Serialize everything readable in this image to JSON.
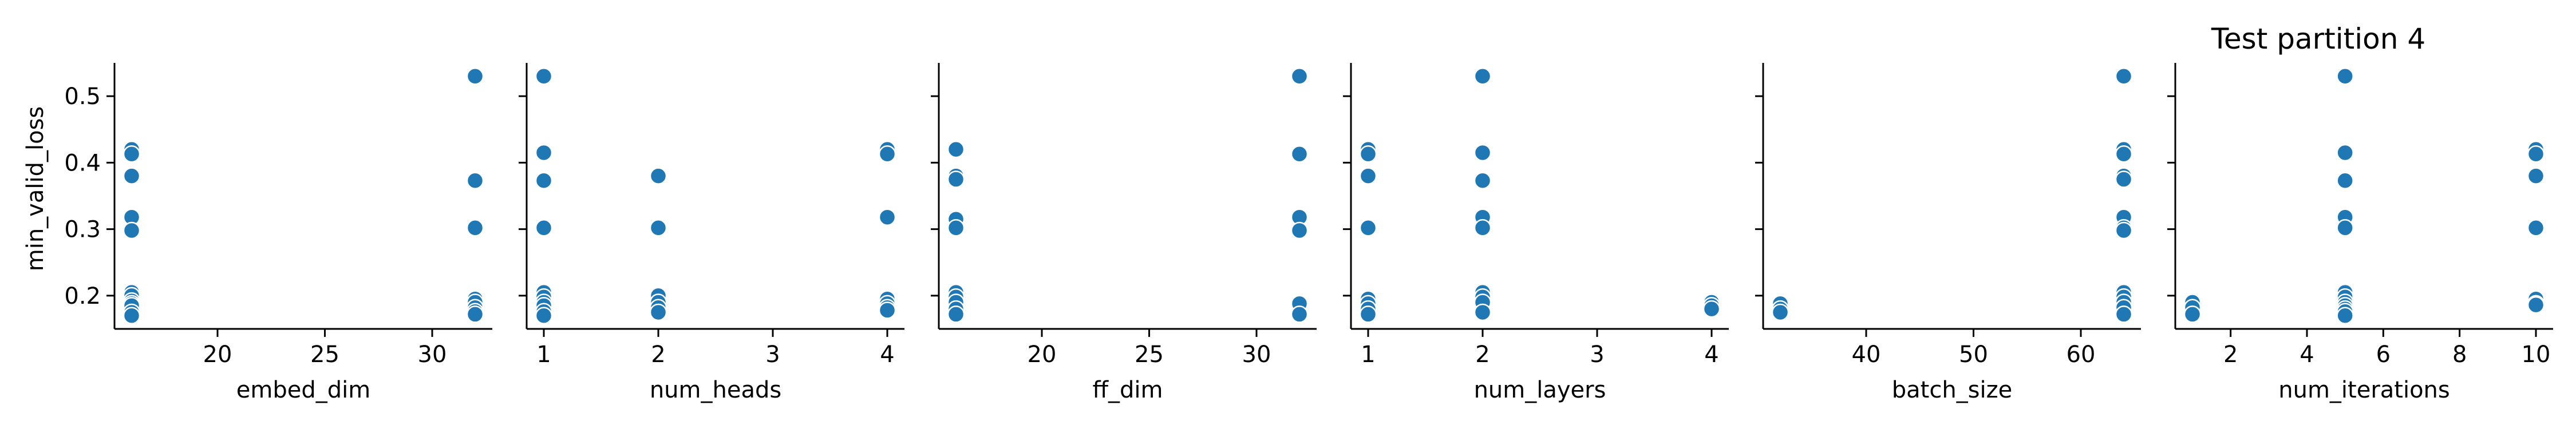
{
  "title": "Test partition 4",
  "ylabel": "min_valid_loss",
  "colors": {
    "point": "#1f77b4",
    "point_edge": "#ffffff",
    "axis": "#000000"
  },
  "chart_data": [
    {
      "type": "scatter",
      "xlabel": "embed_dim",
      "ylabel": "min_valid_loss",
      "xlim": [
        15.2,
        32.8
      ],
      "ylim": [
        0.15,
        0.55
      ],
      "xticks": [
        20,
        25,
        30
      ],
      "yticks": [
        0.2,
        0.3,
        0.4,
        0.5
      ],
      "x": [
        16,
        16,
        16,
        16,
        16,
        16,
        16,
        16,
        16,
        16,
        16,
        16,
        32,
        32,
        32,
        32,
        32,
        32,
        32,
        32
      ],
      "y": [
        0.42,
        0.413,
        0.38,
        0.318,
        0.298,
        0.205,
        0.2,
        0.192,
        0.188,
        0.185,
        0.175,
        0.17,
        0.53,
        0.373,
        0.302,
        0.195,
        0.19,
        0.182,
        0.176,
        0.172
      ]
    },
    {
      "type": "scatter",
      "xlabel": "num_heads",
      "ylabel": "min_valid_loss",
      "xlim": [
        0.85,
        4.15
      ],
      "ylim": [
        0.15,
        0.55
      ],
      "xticks": [
        1,
        2,
        3,
        4
      ],
      "yticks": [
        0.2,
        0.3,
        0.4,
        0.5
      ],
      "x": [
        1,
        1,
        1,
        1,
        1,
        1,
        1,
        1,
        1,
        1,
        2,
        2,
        2,
        2,
        2,
        2,
        4,
        4,
        4,
        4,
        4,
        4,
        4
      ],
      "y": [
        0.53,
        0.415,
        0.373,
        0.302,
        0.205,
        0.198,
        0.19,
        0.185,
        0.176,
        0.17,
        0.38,
        0.302,
        0.2,
        0.19,
        0.182,
        0.175,
        0.42,
        0.413,
        0.318,
        0.195,
        0.188,
        0.182,
        0.178
      ]
    },
    {
      "type": "scatter",
      "xlabel": "ff_dim",
      "ylabel": "min_valid_loss",
      "xlim": [
        15.2,
        32.8
      ],
      "ylim": [
        0.15,
        0.55
      ],
      "xticks": [
        20,
        25,
        30
      ],
      "yticks": [
        0.2,
        0.3,
        0.4,
        0.5
      ],
      "x": [
        16,
        16,
        16,
        16,
        16,
        16,
        16,
        16,
        16,
        16,
        32,
        32,
        32,
        32,
        32,
        32
      ],
      "y": [
        0.42,
        0.38,
        0.375,
        0.315,
        0.302,
        0.205,
        0.198,
        0.19,
        0.18,
        0.172,
        0.53,
        0.413,
        0.318,
        0.298,
        0.188,
        0.172
      ]
    },
    {
      "type": "scatter",
      "xlabel": "num_layers",
      "ylabel": "min_valid_loss",
      "xlim": [
        0.85,
        4.15
      ],
      "ylim": [
        0.15,
        0.55
      ],
      "xticks": [
        1,
        2,
        3,
        4
      ],
      "yticks": [
        0.2,
        0.3,
        0.4,
        0.5
      ],
      "x": [
        1,
        1,
        1,
        1,
        1,
        1,
        1,
        1,
        2,
        2,
        2,
        2,
        2,
        2,
        2,
        2,
        2,
        4,
        4,
        4
      ],
      "y": [
        0.42,
        0.413,
        0.38,
        0.302,
        0.195,
        0.188,
        0.18,
        0.172,
        0.53,
        0.415,
        0.373,
        0.318,
        0.302,
        0.205,
        0.198,
        0.19,
        0.175,
        0.19,
        0.185,
        0.18
      ]
    },
    {
      "type": "scatter",
      "xlabel": "batch_size",
      "ylabel": "min_valid_loss",
      "xlim": [
        30.4,
        65.6
      ],
      "ylim": [
        0.15,
        0.55
      ],
      "xticks": [
        40,
        50,
        60
      ],
      "yticks": [
        0.2,
        0.3,
        0.4,
        0.5
      ],
      "x": [
        32,
        32,
        32,
        64,
        64,
        64,
        64,
        64,
        64,
        64,
        64,
        64,
        64,
        64,
        64,
        64
      ],
      "y": [
        0.188,
        0.18,
        0.175,
        0.53,
        0.42,
        0.413,
        0.38,
        0.375,
        0.318,
        0.302,
        0.298,
        0.205,
        0.198,
        0.19,
        0.182,
        0.172
      ]
    },
    {
      "type": "scatter",
      "xlabel": "num_iterations",
      "ylabel": "min_valid_loss",
      "xlim": [
        0.55,
        10.45
      ],
      "ylim": [
        0.15,
        0.55
      ],
      "xticks": [
        2,
        4,
        6,
        8,
        10
      ],
      "yticks": [
        0.2,
        0.3,
        0.4,
        0.5
      ],
      "x": [
        1,
        1,
        1,
        5,
        5,
        5,
        5,
        5,
        5,
        5,
        5,
        5,
        5,
        5,
        5,
        10,
        10,
        10,
        10,
        10,
        10,
        10
      ],
      "y": [
        0.19,
        0.182,
        0.172,
        0.53,
        0.415,
        0.373,
        0.318,
        0.302,
        0.205,
        0.198,
        0.19,
        0.185,
        0.18,
        0.176,
        0.17,
        0.42,
        0.413,
        0.38,
        0.302,
        0.195,
        0.188,
        0.186
      ]
    }
  ]
}
